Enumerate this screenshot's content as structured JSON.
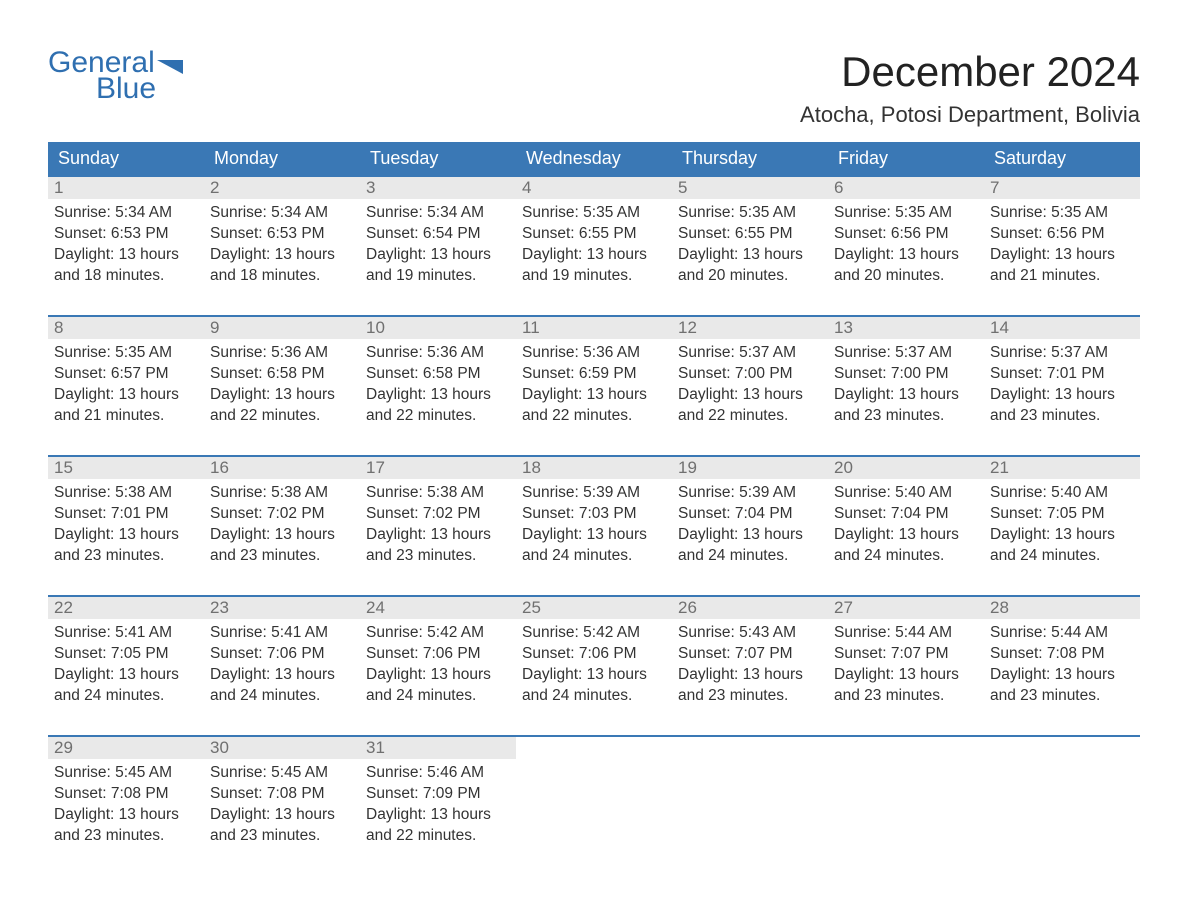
{
  "brand": {
    "general": "General",
    "blue": "Blue",
    "flag_color": "#2f6fb0"
  },
  "title": "December 2024",
  "location": "Atocha, Potosi Department, Bolivia",
  "colors": {
    "header_bg": "#3a78b5",
    "header_text": "#ffffff",
    "row_border": "#3a78b5",
    "daynum_bg": "#e9e9e9",
    "daynum_text": "#707070",
    "body_text": "#333333",
    "page_bg": "#ffffff"
  },
  "typography": {
    "title_fontsize": 42,
    "location_fontsize": 22,
    "dayheader_fontsize": 18,
    "body_fontsize": 15.5
  },
  "day_headers": [
    "Sunday",
    "Monday",
    "Tuesday",
    "Wednesday",
    "Thursday",
    "Friday",
    "Saturday"
  ],
  "weeks": [
    [
      {
        "n": "1",
        "sunrise": "Sunrise: 5:34 AM",
        "sunset": "Sunset: 6:53 PM",
        "d1": "Daylight: 13 hours",
        "d2": "and 18 minutes."
      },
      {
        "n": "2",
        "sunrise": "Sunrise: 5:34 AM",
        "sunset": "Sunset: 6:53 PM",
        "d1": "Daylight: 13 hours",
        "d2": "and 18 minutes."
      },
      {
        "n": "3",
        "sunrise": "Sunrise: 5:34 AM",
        "sunset": "Sunset: 6:54 PM",
        "d1": "Daylight: 13 hours",
        "d2": "and 19 minutes."
      },
      {
        "n": "4",
        "sunrise": "Sunrise: 5:35 AM",
        "sunset": "Sunset: 6:55 PM",
        "d1": "Daylight: 13 hours",
        "d2": "and 19 minutes."
      },
      {
        "n": "5",
        "sunrise": "Sunrise: 5:35 AM",
        "sunset": "Sunset: 6:55 PM",
        "d1": "Daylight: 13 hours",
        "d2": "and 20 minutes."
      },
      {
        "n": "6",
        "sunrise": "Sunrise: 5:35 AM",
        "sunset": "Sunset: 6:56 PM",
        "d1": "Daylight: 13 hours",
        "d2": "and 20 minutes."
      },
      {
        "n": "7",
        "sunrise": "Sunrise: 5:35 AM",
        "sunset": "Sunset: 6:56 PM",
        "d1": "Daylight: 13 hours",
        "d2": "and 21 minutes."
      }
    ],
    [
      {
        "n": "8",
        "sunrise": "Sunrise: 5:35 AM",
        "sunset": "Sunset: 6:57 PM",
        "d1": "Daylight: 13 hours",
        "d2": "and 21 minutes."
      },
      {
        "n": "9",
        "sunrise": "Sunrise: 5:36 AM",
        "sunset": "Sunset: 6:58 PM",
        "d1": "Daylight: 13 hours",
        "d2": "and 22 minutes."
      },
      {
        "n": "10",
        "sunrise": "Sunrise: 5:36 AM",
        "sunset": "Sunset: 6:58 PM",
        "d1": "Daylight: 13 hours",
        "d2": "and 22 minutes."
      },
      {
        "n": "11",
        "sunrise": "Sunrise: 5:36 AM",
        "sunset": "Sunset: 6:59 PM",
        "d1": "Daylight: 13 hours",
        "d2": "and 22 minutes."
      },
      {
        "n": "12",
        "sunrise": "Sunrise: 5:37 AM",
        "sunset": "Sunset: 7:00 PM",
        "d1": "Daylight: 13 hours",
        "d2": "and 22 minutes."
      },
      {
        "n": "13",
        "sunrise": "Sunrise: 5:37 AM",
        "sunset": "Sunset: 7:00 PM",
        "d1": "Daylight: 13 hours",
        "d2": "and 23 minutes."
      },
      {
        "n": "14",
        "sunrise": "Sunrise: 5:37 AM",
        "sunset": "Sunset: 7:01 PM",
        "d1": "Daylight: 13 hours",
        "d2": "and 23 minutes."
      }
    ],
    [
      {
        "n": "15",
        "sunrise": "Sunrise: 5:38 AM",
        "sunset": "Sunset: 7:01 PM",
        "d1": "Daylight: 13 hours",
        "d2": "and 23 minutes."
      },
      {
        "n": "16",
        "sunrise": "Sunrise: 5:38 AM",
        "sunset": "Sunset: 7:02 PM",
        "d1": "Daylight: 13 hours",
        "d2": "and 23 minutes."
      },
      {
        "n": "17",
        "sunrise": "Sunrise: 5:38 AM",
        "sunset": "Sunset: 7:02 PM",
        "d1": "Daylight: 13 hours",
        "d2": "and 23 minutes."
      },
      {
        "n": "18",
        "sunrise": "Sunrise: 5:39 AM",
        "sunset": "Sunset: 7:03 PM",
        "d1": "Daylight: 13 hours",
        "d2": "and 24 minutes."
      },
      {
        "n": "19",
        "sunrise": "Sunrise: 5:39 AM",
        "sunset": "Sunset: 7:04 PM",
        "d1": "Daylight: 13 hours",
        "d2": "and 24 minutes."
      },
      {
        "n": "20",
        "sunrise": "Sunrise: 5:40 AM",
        "sunset": "Sunset: 7:04 PM",
        "d1": "Daylight: 13 hours",
        "d2": "and 24 minutes."
      },
      {
        "n": "21",
        "sunrise": "Sunrise: 5:40 AM",
        "sunset": "Sunset: 7:05 PM",
        "d1": "Daylight: 13 hours",
        "d2": "and 24 minutes."
      }
    ],
    [
      {
        "n": "22",
        "sunrise": "Sunrise: 5:41 AM",
        "sunset": "Sunset: 7:05 PM",
        "d1": "Daylight: 13 hours",
        "d2": "and 24 minutes."
      },
      {
        "n": "23",
        "sunrise": "Sunrise: 5:41 AM",
        "sunset": "Sunset: 7:06 PM",
        "d1": "Daylight: 13 hours",
        "d2": "and 24 minutes."
      },
      {
        "n": "24",
        "sunrise": "Sunrise: 5:42 AM",
        "sunset": "Sunset: 7:06 PM",
        "d1": "Daylight: 13 hours",
        "d2": "and 24 minutes."
      },
      {
        "n": "25",
        "sunrise": "Sunrise: 5:42 AM",
        "sunset": "Sunset: 7:06 PM",
        "d1": "Daylight: 13 hours",
        "d2": "and 24 minutes."
      },
      {
        "n": "26",
        "sunrise": "Sunrise: 5:43 AM",
        "sunset": "Sunset: 7:07 PM",
        "d1": "Daylight: 13 hours",
        "d2": "and 23 minutes."
      },
      {
        "n": "27",
        "sunrise": "Sunrise: 5:44 AM",
        "sunset": "Sunset: 7:07 PM",
        "d1": "Daylight: 13 hours",
        "d2": "and 23 minutes."
      },
      {
        "n": "28",
        "sunrise": "Sunrise: 5:44 AM",
        "sunset": "Sunset: 7:08 PM",
        "d1": "Daylight: 13 hours",
        "d2": "and 23 minutes."
      }
    ],
    [
      {
        "n": "29",
        "sunrise": "Sunrise: 5:45 AM",
        "sunset": "Sunset: 7:08 PM",
        "d1": "Daylight: 13 hours",
        "d2": "and 23 minutes."
      },
      {
        "n": "30",
        "sunrise": "Sunrise: 5:45 AM",
        "sunset": "Sunset: 7:08 PM",
        "d1": "Daylight: 13 hours",
        "d2": "and 23 minutes."
      },
      {
        "n": "31",
        "sunrise": "Sunrise: 5:46 AM",
        "sunset": "Sunset: 7:09 PM",
        "d1": "Daylight: 13 hours",
        "d2": "and 22 minutes."
      },
      {
        "empty": true
      },
      {
        "empty": true
      },
      {
        "empty": true
      },
      {
        "empty": true
      }
    ]
  ]
}
